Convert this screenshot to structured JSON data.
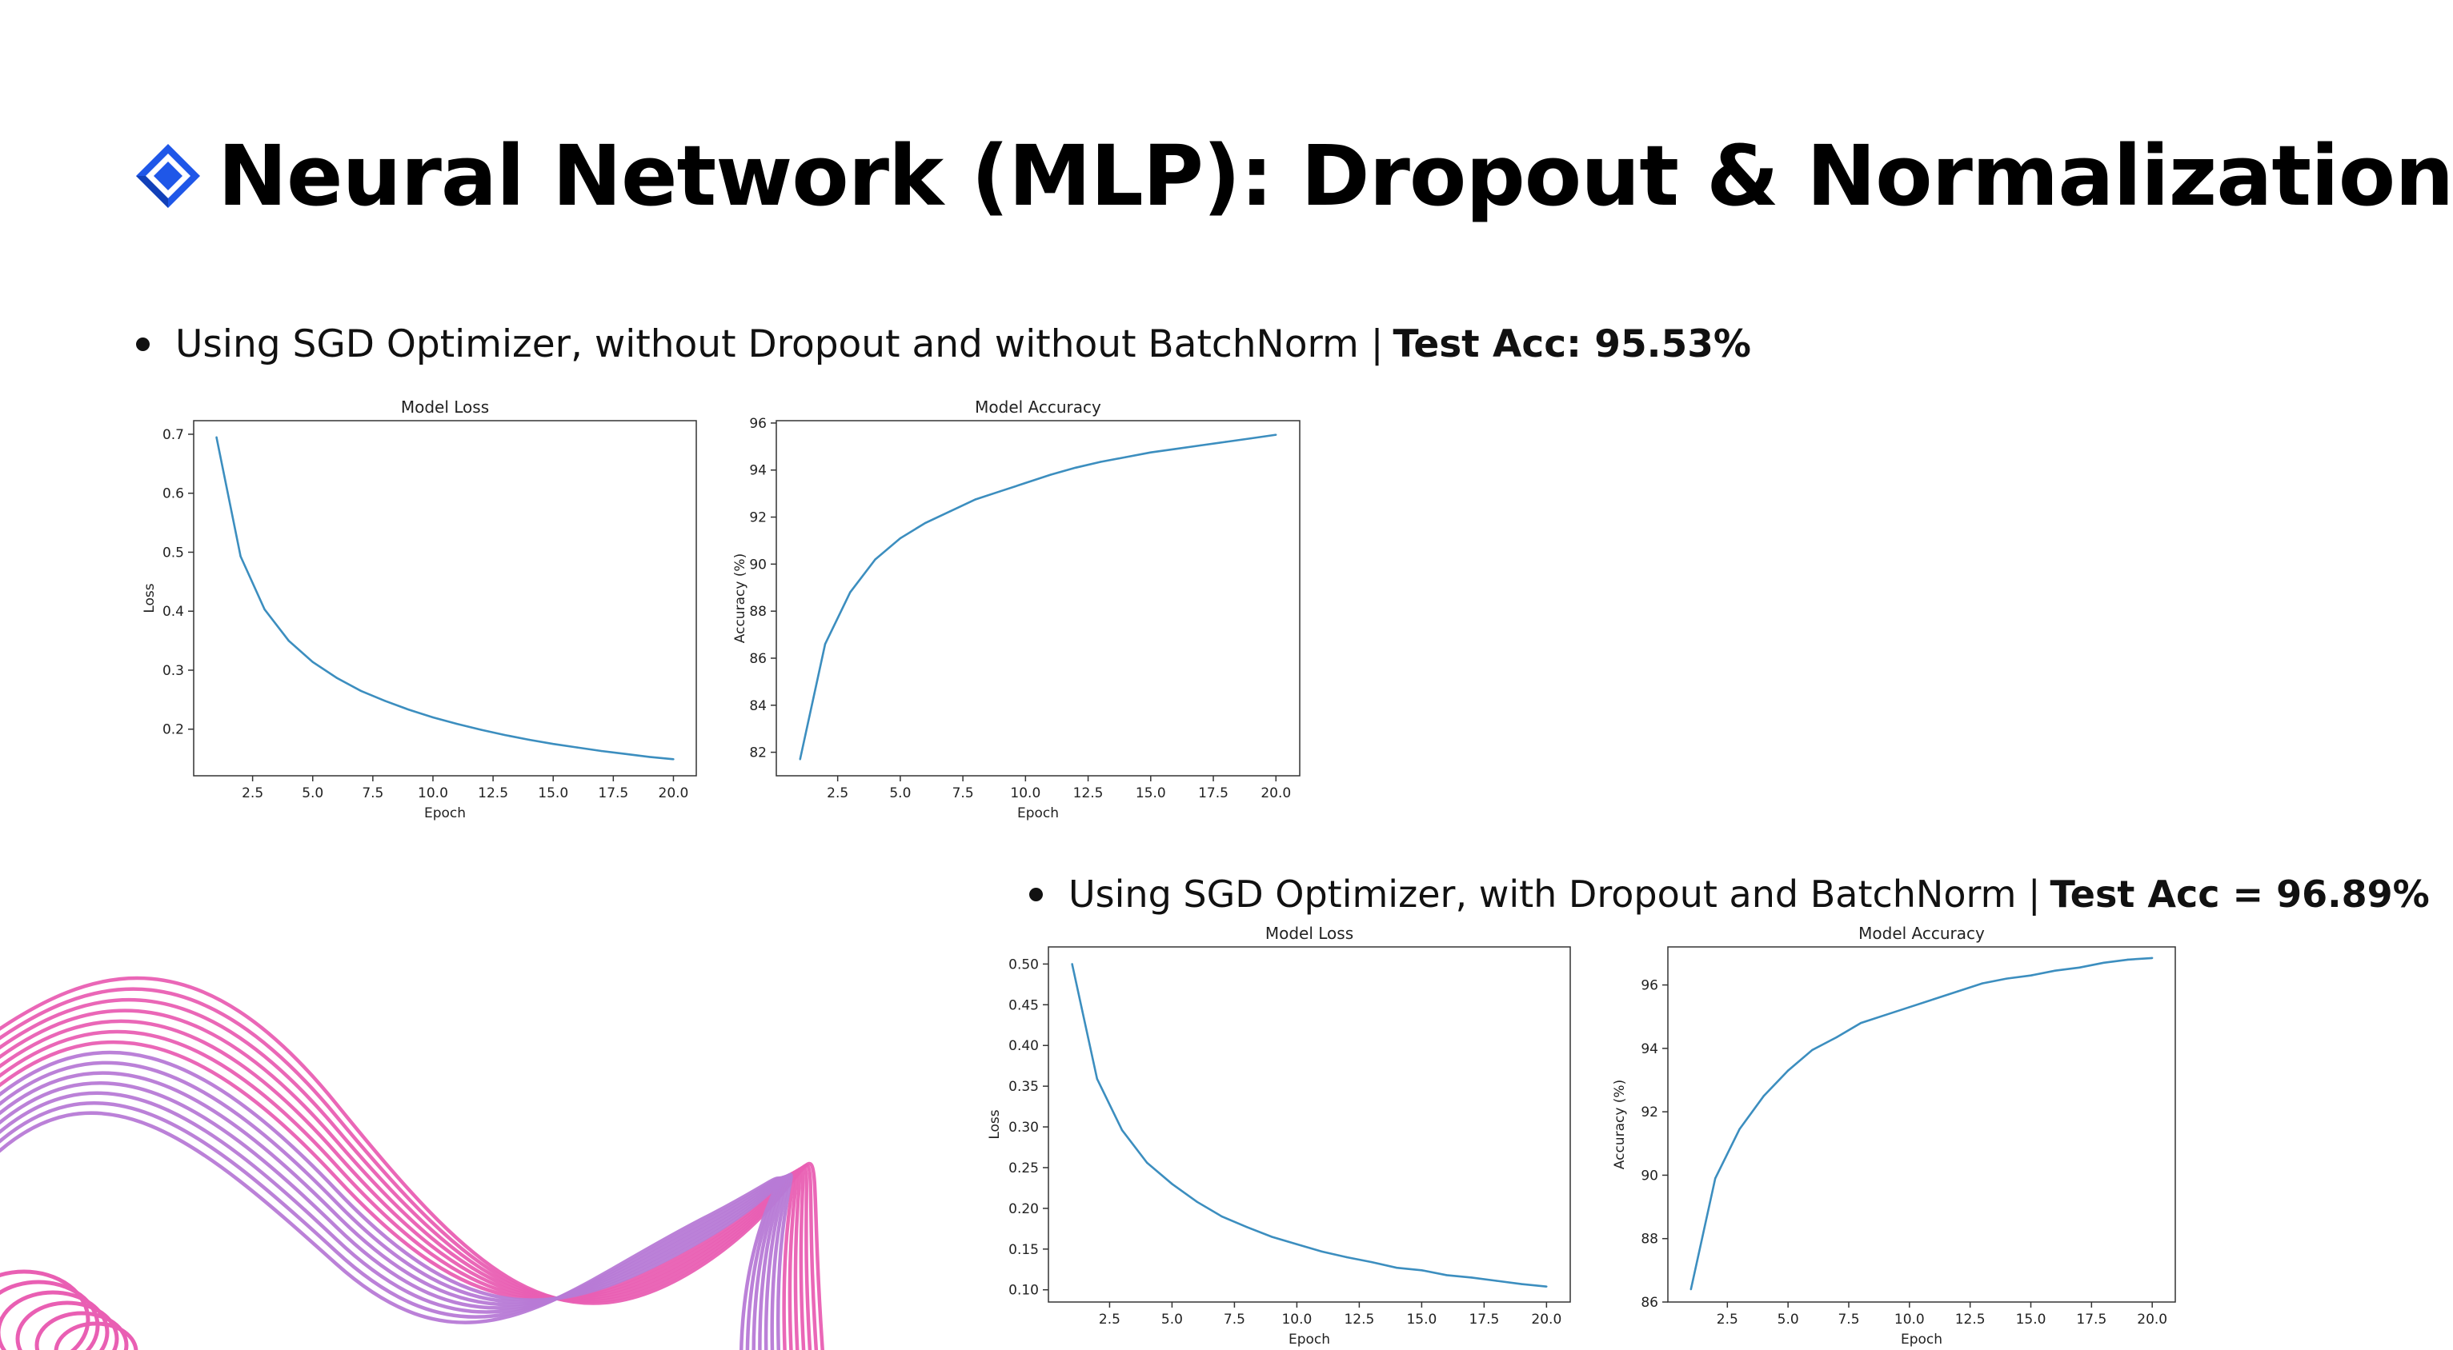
{
  "slide": {
    "title": "Neural Network (MLP): Dropout & Normalization"
  },
  "bullets": [
    {
      "text": "Using SGD Optimizer, without Dropout and without BatchNorm |",
      "accuracy": "Test Acc: 95.53%"
    },
    {
      "text": "Using SGD Optimizer, with Dropout and  BatchNorm |",
      "accuracy": "Test Acc = 96.89%"
    }
  ],
  "colors": {
    "line": "#3c8ebf",
    "icon_blue": "#1f57e8",
    "wave_pink": "#e95fb3",
    "wave_purple": "#b77ad6"
  },
  "chart_data": [
    {
      "type": "line",
      "title": "Model Loss",
      "xlabel": "Epoch",
      "ylabel": "Loss",
      "x": [
        1,
        2,
        3,
        4,
        5,
        6,
        7,
        8,
        9,
        10,
        11,
        12,
        13,
        14,
        15,
        16,
        17,
        18,
        19,
        20
      ],
      "values": [
        0.695,
        0.493,
        0.403,
        0.35,
        0.314,
        0.287,
        0.265,
        0.248,
        0.233,
        0.22,
        0.209,
        0.199,
        0.19,
        0.182,
        0.175,
        0.169,
        0.163,
        0.158,
        0.153,
        0.149
      ],
      "xlim": [
        0.05,
        20.95
      ],
      "ylim": [
        0.121,
        0.723
      ],
      "xticks": [
        2.5,
        5.0,
        7.5,
        10.0,
        12.5,
        15.0,
        17.5,
        20.0
      ],
      "yticks": [
        0.2,
        0.3,
        0.4,
        0.5,
        0.6,
        0.7
      ],
      "xtick_labels": [
        "2.5",
        "5.0",
        "7.5",
        "10.0",
        "12.5",
        "15.0",
        "17.5",
        "20.0"
      ],
      "ytick_labels": [
        "0.2",
        "0.3",
        "0.4",
        "0.5",
        "0.6",
        "0.7"
      ]
    },
    {
      "type": "line",
      "title": "Model Accuracy",
      "xlabel": "Epoch",
      "ylabel": "Accuracy (%)",
      "x": [
        1,
        2,
        3,
        4,
        5,
        6,
        7,
        8,
        9,
        10,
        11,
        12,
        13,
        14,
        15,
        16,
        17,
        18,
        19,
        20
      ],
      "values": [
        81.7,
        86.6,
        88.8,
        90.2,
        91.1,
        91.75,
        92.25,
        92.75,
        93.1,
        93.45,
        93.8,
        94.1,
        94.35,
        94.55,
        94.75,
        94.9,
        95.05,
        95.2,
        95.35,
        95.5
      ],
      "xlim": [
        0.05,
        20.95
      ],
      "ylim": [
        81.0,
        96.1
      ],
      "xticks": [
        2.5,
        5.0,
        7.5,
        10.0,
        12.5,
        15.0,
        17.5,
        20.0
      ],
      "yticks": [
        82,
        84,
        86,
        88,
        90,
        92,
        94,
        96
      ],
      "xtick_labels": [
        "2.5",
        "5.0",
        "7.5",
        "10.0",
        "12.5",
        "15.0",
        "17.5",
        "20.0"
      ],
      "ytick_labels": [
        "82",
        "84",
        "86",
        "88",
        "90",
        "92",
        "94",
        "96"
      ]
    },
    {
      "type": "line",
      "title": "Model Loss",
      "xlabel": "Epoch",
      "ylabel": "Loss",
      "x": [
        1,
        2,
        3,
        4,
        5,
        6,
        7,
        8,
        9,
        10,
        11,
        12,
        13,
        14,
        15,
        16,
        17,
        18,
        19,
        20
      ],
      "values": [
        0.5,
        0.359,
        0.296,
        0.256,
        0.23,
        0.208,
        0.19,
        0.177,
        0.165,
        0.156,
        0.147,
        0.14,
        0.134,
        0.127,
        0.124,
        0.118,
        0.115,
        0.111,
        0.107,
        0.104
      ],
      "xlim": [
        0.05,
        20.95
      ],
      "ylim": [
        0.085,
        0.521
      ],
      "xticks": [
        2.5,
        5.0,
        7.5,
        10.0,
        12.5,
        15.0,
        17.5,
        20.0
      ],
      "yticks": [
        0.1,
        0.15,
        0.2,
        0.25,
        0.3,
        0.35,
        0.4,
        0.45,
        0.5
      ],
      "xtick_labels": [
        "2.5",
        "5.0",
        "7.5",
        "10.0",
        "12.5",
        "15.0",
        "17.5",
        "20.0"
      ],
      "ytick_labels": [
        "0.10",
        "0.15",
        "0.20",
        "0.25",
        "0.30",
        "0.35",
        "0.40",
        "0.45",
        "0.50"
      ]
    },
    {
      "type": "line",
      "title": "Model Accuracy",
      "xlabel": "Epoch",
      "ylabel": "Accuracy (%)",
      "x": [
        1,
        2,
        3,
        4,
        5,
        6,
        7,
        8,
        9,
        10,
        11,
        12,
        13,
        14,
        15,
        16,
        17,
        18,
        19,
        20
      ],
      "values": [
        86.4,
        89.9,
        91.45,
        92.5,
        93.3,
        93.95,
        94.35,
        94.8,
        95.05,
        95.3,
        95.55,
        95.8,
        96.05,
        96.2,
        96.3,
        96.45,
        96.55,
        96.7,
        96.8,
        96.85
      ],
      "xlim": [
        0.05,
        20.95
      ],
      "ylim": [
        86.0,
        97.2
      ],
      "xticks": [
        2.5,
        5.0,
        7.5,
        10.0,
        12.5,
        15.0,
        17.5,
        20.0
      ],
      "yticks": [
        86,
        88,
        90,
        92,
        94,
        96
      ],
      "xtick_labels": [
        "2.5",
        "5.0",
        "7.5",
        "10.0",
        "12.5",
        "15.0",
        "17.5",
        "20.0"
      ],
      "ytick_labels": [
        "86",
        "88",
        "90",
        "92",
        "94",
        "96"
      ]
    }
  ]
}
